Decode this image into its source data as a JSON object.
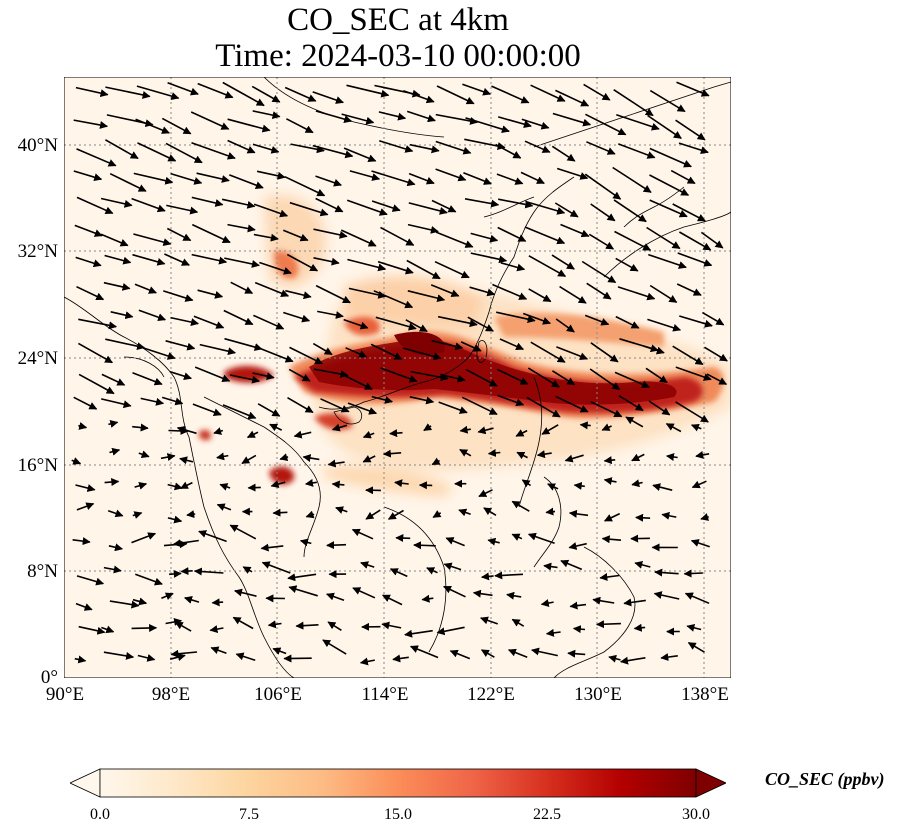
{
  "title": {
    "line1": "CO_SEC at 4km",
    "line2": "Time: 2024-03-10 00:00:00"
  },
  "map": {
    "variable": "CO_SEC",
    "level": "4km",
    "time": "2024-03-10 00:00:00",
    "extent": {
      "lon": [
        90,
        140
      ],
      "lat": [
        0,
        45
      ]
    },
    "gridlines": "dotted",
    "lat_ticks": [
      "0°",
      "8°N",
      "16°N",
      "24°N",
      "32°N",
      "40°N"
    ],
    "lon_ticks": [
      "90°E",
      "98°E",
      "106°E",
      "114°E",
      "122°E",
      "130°E",
      "138°E"
    ],
    "wind_vectors": "black arrows, predominantly westerly to west-northwesterly in the north, weaker and mixed in the south"
  },
  "colorbar": {
    "label": "CO_SEC (ppbv)",
    "ticks": [
      "0.0",
      "7.5",
      "15.0",
      "22.5",
      "30.0"
    ],
    "range": [
      0.0,
      30.0
    ],
    "extend": "both",
    "colormap": "OrRd",
    "colors": [
      "#fff7ec",
      "#fee8c8",
      "#fdd49e",
      "#fdbb84",
      "#fc8d59",
      "#ef6548",
      "#d7301f",
      "#b30000",
      "#7f0000"
    ]
  }
}
